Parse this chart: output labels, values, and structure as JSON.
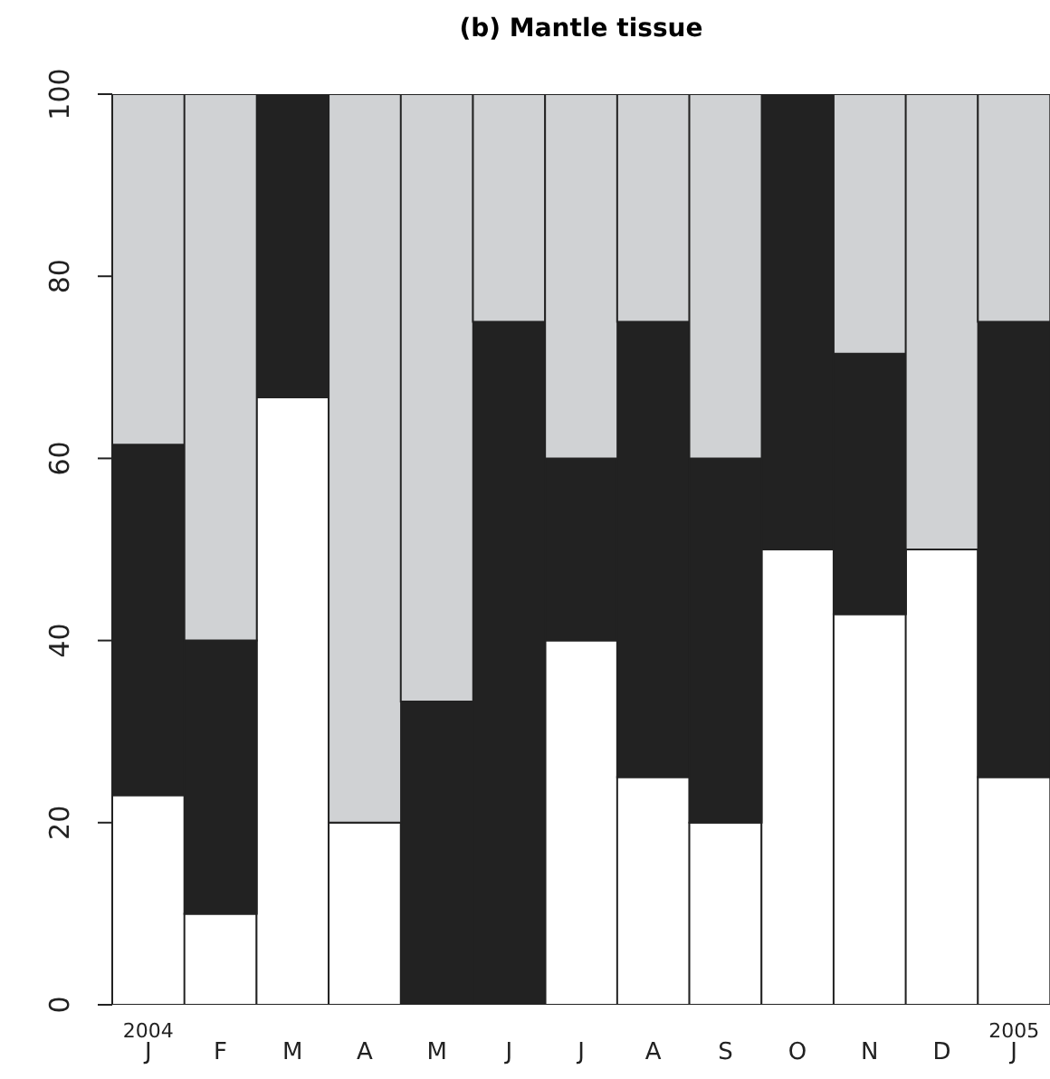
{
  "chart_data": {
    "type": "bar",
    "title": "(b) Mantle tissue",
    "stacked": true,
    "categories": [
      "2004\nJ",
      "F",
      "M",
      "A",
      "M",
      "J",
      "J",
      "A",
      "S",
      "O",
      "N",
      "D",
      "2005\nJ"
    ],
    "series": [
      {
        "color": "#ffffff",
        "values": [
          23,
          10,
          66.7,
          20,
          0,
          0,
          40,
          25,
          20,
          50,
          42.9,
          50,
          25
        ]
      },
      {
        "color": "#222222",
        "values": [
          38.5,
          30,
          33.3,
          0,
          33.3,
          75,
          20,
          50,
          40,
          50,
          28.6,
          0,
          50
        ]
      },
      {
        "color": "#d0d2d4",
        "values": [
          38.5,
          60,
          0,
          80,
          66.7,
          25,
          40,
          25,
          40,
          0,
          28.6,
          50,
          25
        ]
      }
    ],
    "ylim": [
      0,
      100
    ],
    "yticks": [
      0,
      20,
      40,
      60,
      80,
      100
    ],
    "grid": false,
    "legend": false
  }
}
